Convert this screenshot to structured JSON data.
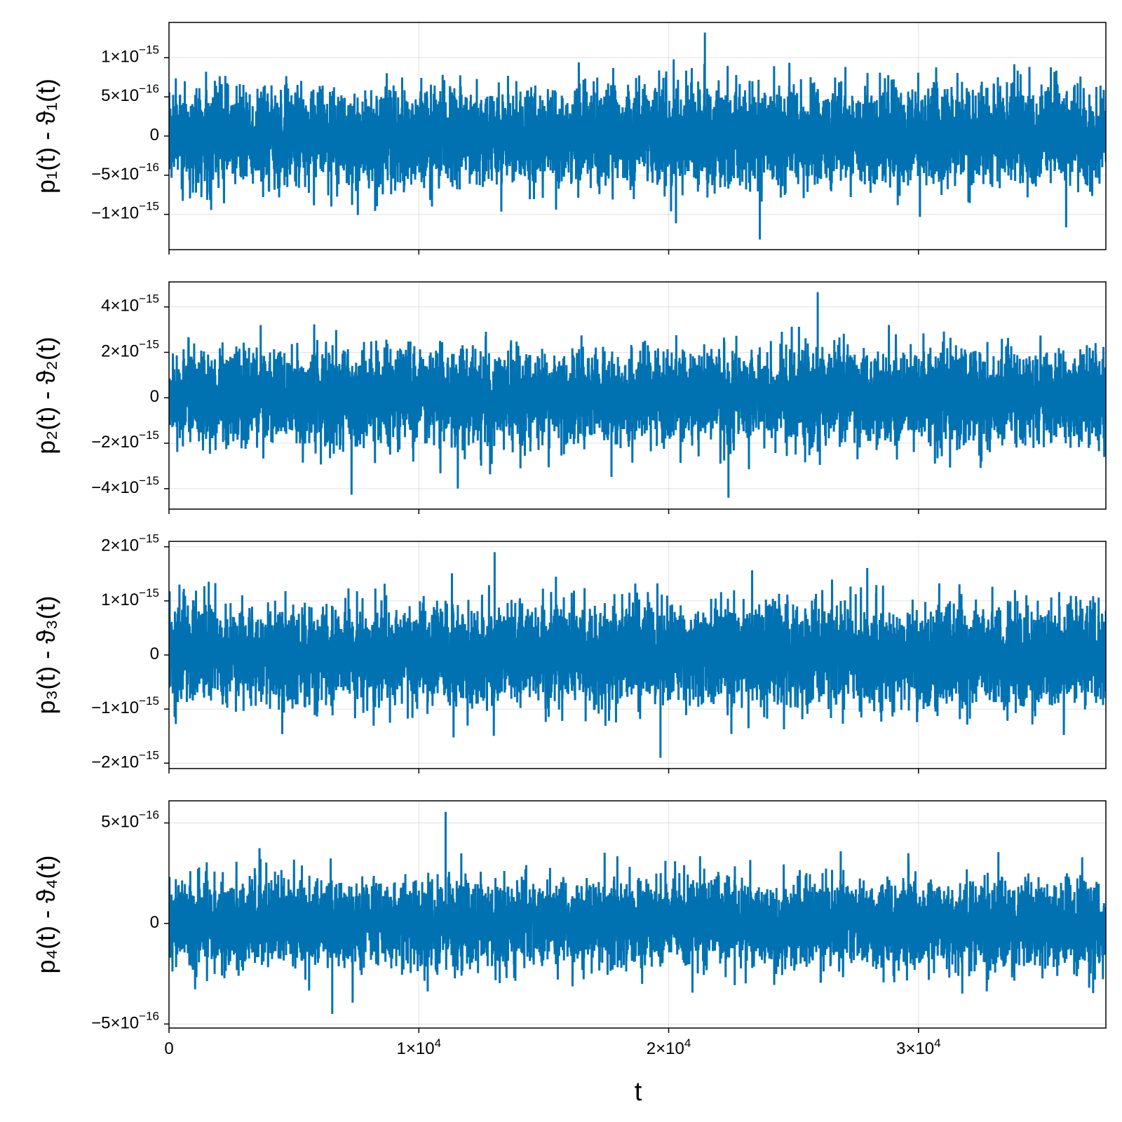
{
  "chart_data": [
    {
      "type": "line",
      "ylabel": "p₁(t) - ϑ₁(t)",
      "xlim": [
        0,
        37500
      ],
      "ylim": [
        -1.45e-15,
        1.45e-15
      ],
      "yticks": [
        {
          "value": 1e-15,
          "mant": "1×10",
          "exp": "−15"
        },
        {
          "value": 5e-16,
          "mant": "5×10",
          "exp": "−16"
        },
        {
          "value": 0,
          "mant": "0",
          "exp": ""
        },
        {
          "value": -5e-16,
          "mant": "−5×10",
          "exp": "−16"
        },
        {
          "value": -1e-15,
          "mant": "−1×10",
          "exp": "−15"
        }
      ],
      "series": [
        {
          "color": "#0072b2",
          "noise_std": 3e-16,
          "peak_max": 1.32e-15,
          "peak_min": -1.32e-15
        }
      ]
    },
    {
      "type": "line",
      "ylabel": "p₂(t) - ϑ₂(t)",
      "xlim": [
        0,
        37500
      ],
      "ylim": [
        -4.9e-15,
        5.1e-15
      ],
      "yticks": [
        {
          "value": 4e-15,
          "mant": "4×10",
          "exp": "−15"
        },
        {
          "value": 2e-15,
          "mant": "2×10",
          "exp": "−15"
        },
        {
          "value": 0,
          "mant": "0",
          "exp": ""
        },
        {
          "value": -2e-15,
          "mant": "−2×10",
          "exp": "−15"
        },
        {
          "value": -4e-15,
          "mant": "−4×10",
          "exp": "−15"
        }
      ],
      "series": [
        {
          "color": "#0072b2",
          "noise_std": 1e-15,
          "peak_max": 4.65e-15,
          "peak_min": -4.4e-15
        }
      ]
    },
    {
      "type": "line",
      "ylabel": "p₃(t) - ϑ₃(t)",
      "xlim": [
        0,
        37500
      ],
      "ylim": [
        -2.1e-15,
        2.1e-15
      ],
      "yticks": [
        {
          "value": 2e-15,
          "mant": "2×10",
          "exp": "−15"
        },
        {
          "value": 1e-15,
          "mant": "1×10",
          "exp": "−15"
        },
        {
          "value": 0,
          "mant": "0",
          "exp": ""
        },
        {
          "value": -1e-15,
          "mant": "−1×10",
          "exp": "−15"
        },
        {
          "value": -2e-15,
          "mant": "−2×10",
          "exp": "−15"
        }
      ],
      "series": [
        {
          "color": "#0072b2",
          "noise_std": 4.5e-16,
          "peak_max": 1.9e-15,
          "peak_min": -1.9e-15
        }
      ]
    },
    {
      "type": "line",
      "ylabel": "p₄(t) - ϑ₄(t)",
      "xlim": [
        0,
        37500
      ],
      "ylim": [
        -5.2e-16,
        6.1e-16
      ],
      "yticks": [
        {
          "value": 5e-16,
          "mant": "5×10",
          "exp": "−16"
        },
        {
          "value": 0,
          "mant": "0",
          "exp": ""
        },
        {
          "value": -5e-16,
          "mant": "−5×10",
          "exp": "−16"
        }
      ],
      "series": [
        {
          "color": "#0072b2",
          "noise_std": 1.05e-16,
          "peak_max": 5.55e-16,
          "peak_min": -4.5e-16
        }
      ]
    }
  ],
  "xaxis": {
    "label": "t",
    "ticks": [
      {
        "value": 0,
        "mant": "0",
        "exp": ""
      },
      {
        "value": 10000,
        "mant": "1×10",
        "exp": "4"
      },
      {
        "value": 20000,
        "mant": "2×10",
        "exp": "4"
      },
      {
        "value": 30000,
        "mant": "3×10",
        "exp": "4"
      }
    ]
  }
}
